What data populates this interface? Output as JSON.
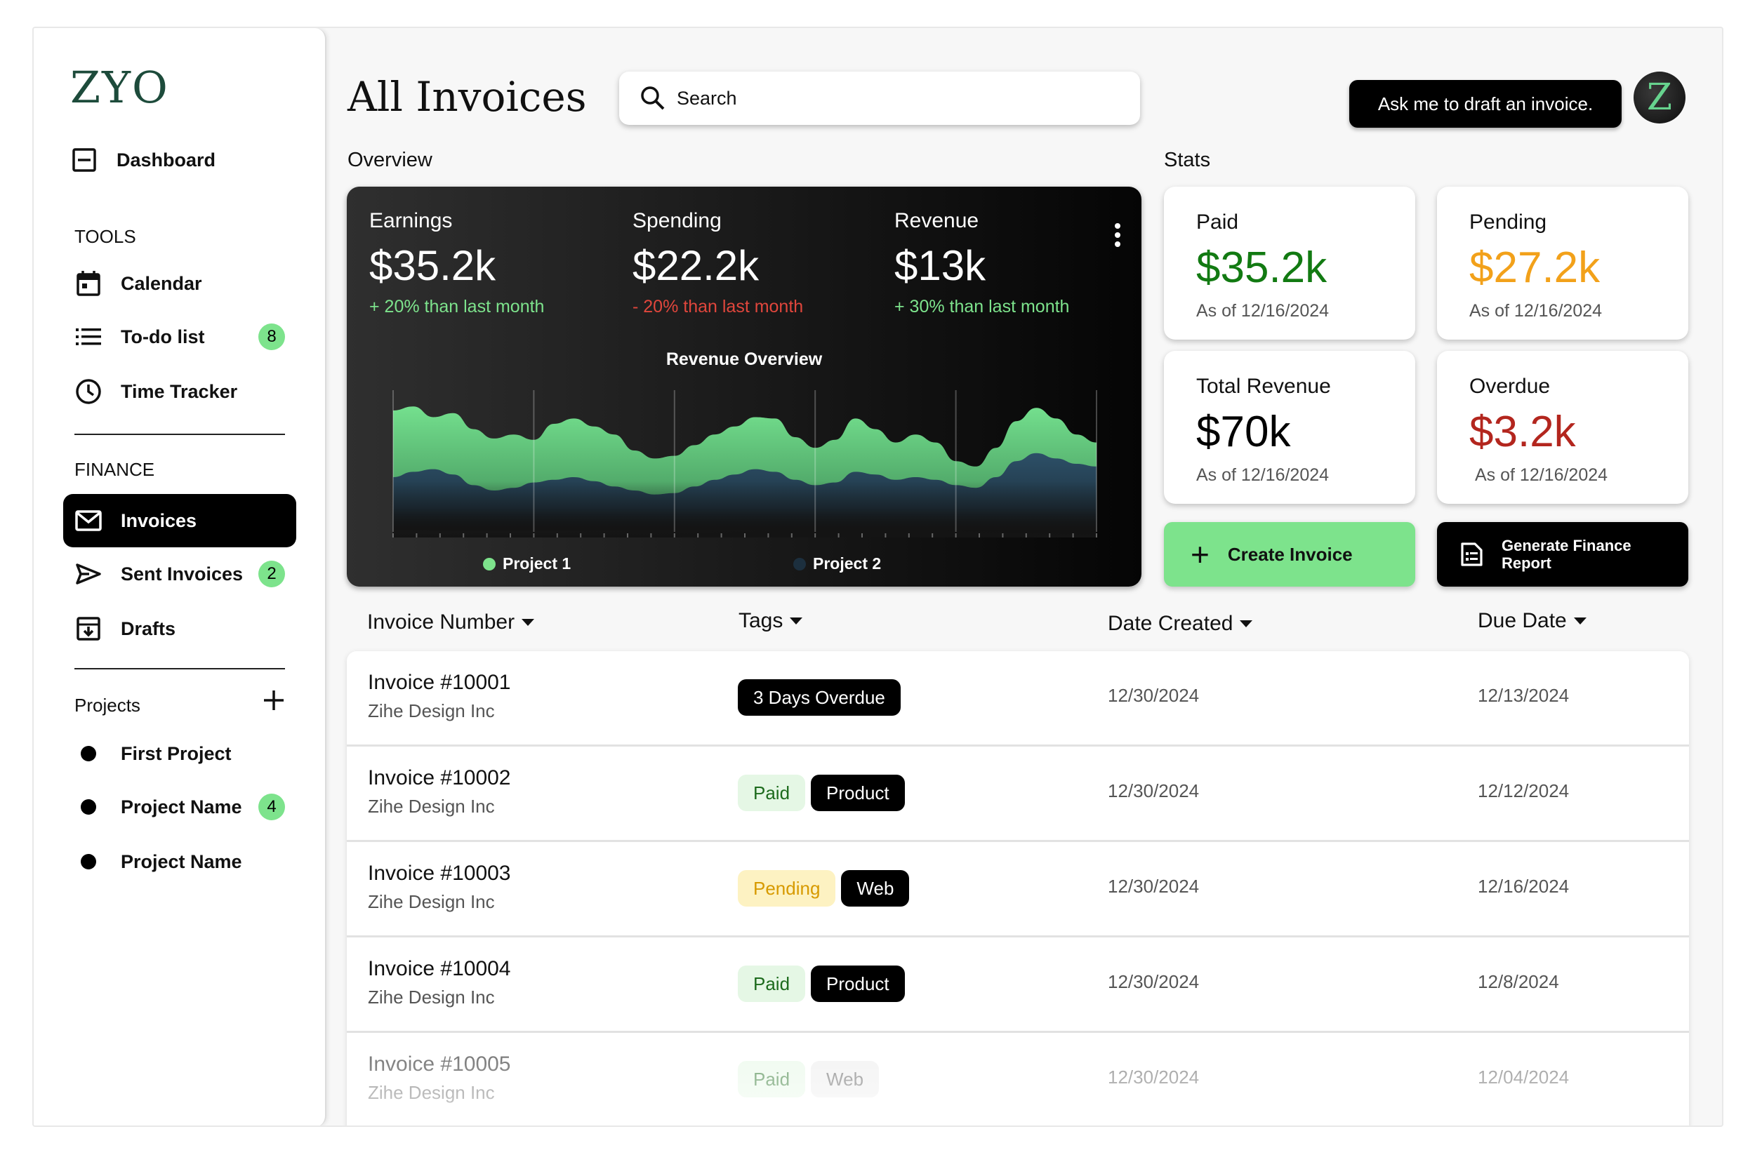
{
  "sidebar": {
    "logo": "ZYO",
    "dashboard": {
      "label": "Dashboard",
      "icon": "dashboard-icon"
    },
    "tools_heading": "TOOLS",
    "tools": [
      {
        "label": "Calendar",
        "icon": "calendar-icon"
      },
      {
        "label": "To-do list",
        "icon": "list-icon",
        "badge": "8"
      },
      {
        "label": "Time Tracker",
        "icon": "clock-icon"
      }
    ],
    "finance_heading": "FINANCE",
    "finance": [
      {
        "label": "Invoices",
        "icon": "mail-icon",
        "active": true
      },
      {
        "label": "Sent Invoices",
        "icon": "send-icon",
        "badge": "2"
      },
      {
        "label": "Drafts",
        "icon": "drafts-icon"
      }
    ],
    "projects_heading": "Projects",
    "projects": [
      {
        "label": "First Project"
      },
      {
        "label": "Project Name",
        "badge": "4"
      },
      {
        "label": "Project Name"
      }
    ]
  },
  "header": {
    "title": "All Invoices",
    "search_placeholder": "Search",
    "ask_button": "Ask me to draft an invoice.",
    "avatar_letter": "Z"
  },
  "overview": {
    "heading": "Overview",
    "stats": [
      {
        "title": "Earnings",
        "value": "$35.2k",
        "change": "+ 20% than last month",
        "color": "#7de38c"
      },
      {
        "title": "Spending",
        "value": "$22.2k",
        "change": "- 20% than last month",
        "color": "#e0463c"
      },
      {
        "title": "Revenue",
        "value": "$13k",
        "change": "+ 30% than last month",
        "color": "#7de38c"
      }
    ]
  },
  "chart_data": {
    "type": "area",
    "title": "Revenue Overview",
    "series": [
      {
        "name": "Project 1",
        "color": "#6fdc8a",
        "values": [
          0.9,
          0.93,
          0.85,
          0.88,
          0.76,
          0.69,
          0.72,
          0.68,
          0.8,
          0.84,
          0.78,
          0.72,
          0.6,
          0.54,
          0.56,
          0.64,
          0.72,
          0.78,
          0.85,
          0.84,
          0.7,
          0.62,
          0.68,
          0.84,
          0.76,
          0.66,
          0.72,
          0.66,
          0.52,
          0.48,
          0.62,
          0.82,
          0.92,
          0.84,
          0.72,
          0.66
        ]
      },
      {
        "name": "Project 2",
        "color": "#2a4a63",
        "values": [
          0.4,
          0.44,
          0.46,
          0.42,
          0.34,
          0.3,
          0.32,
          0.36,
          0.38,
          0.4,
          0.37,
          0.33,
          0.3,
          0.27,
          0.28,
          0.33,
          0.38,
          0.42,
          0.46,
          0.44,
          0.38,
          0.34,
          0.36,
          0.44,
          0.42,
          0.38,
          0.4,
          0.38,
          0.34,
          0.32,
          0.4,
          0.52,
          0.58,
          0.54,
          0.5,
          0.48
        ]
      }
    ],
    "grid": true,
    "legend": "bottom"
  },
  "stats_panel": {
    "heading": "Stats",
    "cards": [
      {
        "title": "Paid",
        "value": "$35.2k",
        "date": "As of 12/16/2024",
        "color": "#127a12"
      },
      {
        "title": "Pending",
        "value": "$27.2k",
        "date": "As of 12/16/2024",
        "color": "#f2a11a"
      },
      {
        "title": "Total Revenue",
        "value": "$70k",
        "date": "As of 12/16/2024",
        "color": "#000000"
      },
      {
        "title": "Overdue",
        "value": "$3.2k",
        "date": "As of 12/16/2024",
        "color": "#b3261e"
      }
    ],
    "create_button": "Create Invoice",
    "report_button_line1": "Generate Finance",
    "report_button_line2": "Report"
  },
  "table": {
    "columns": [
      "Invoice Number",
      "Tags",
      "Date Created",
      "Due Date"
    ],
    "rows": [
      {
        "invoice": "Invoice #10001",
        "company": "Zihe Design Inc",
        "tags": [
          {
            "text": "3 Days Overdue",
            "style": "dark"
          }
        ],
        "created": "12/30/2024",
        "due": "12/13/2024"
      },
      {
        "invoice": "Invoice #10002",
        "company": "Zihe Design Inc",
        "tags": [
          {
            "text": "Paid",
            "style": "paid"
          },
          {
            "text": "Product",
            "style": "dark"
          }
        ],
        "created": "12/30/2024",
        "due": "12/12/2024"
      },
      {
        "invoice": "Invoice #10003",
        "company": "Zihe Design Inc",
        "tags": [
          {
            "text": "Pending",
            "style": "pending"
          },
          {
            "text": "Web",
            "style": "dark"
          }
        ],
        "created": "12/30/2024",
        "due": "12/16/2024"
      },
      {
        "invoice": "Invoice #10004",
        "company": "Zihe Design Inc",
        "tags": [
          {
            "text": "Paid",
            "style": "paid"
          },
          {
            "text": "Product",
            "style": "dark"
          }
        ],
        "created": "12/30/2024",
        "due": "12/8/2024"
      },
      {
        "invoice": "Invoice #10005",
        "company": "Zihe Design Inc",
        "tags": [
          {
            "text": "Paid",
            "style": "paid"
          },
          {
            "text": "Web",
            "style": "grey"
          }
        ],
        "created": "12/30/2024",
        "due": "12/04/2024"
      }
    ]
  }
}
